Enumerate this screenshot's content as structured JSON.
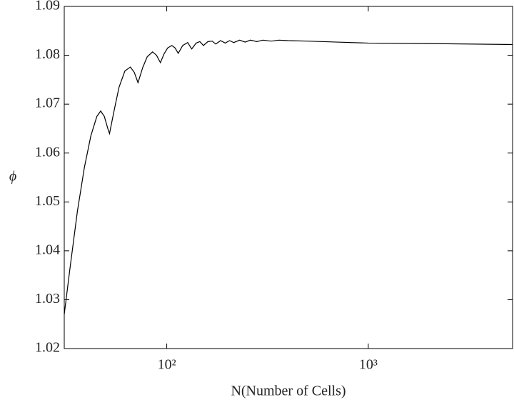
{
  "chart_data": {
    "type": "line",
    "xlabel": "N(Number of Cells)",
    "ylabel": "ϕ",
    "xscale": "log",
    "color": "#000000",
    "x": [
      31,
      33,
      36,
      39,
      42,
      45,
      47,
      49,
      51,
      52,
      55,
      58,
      62,
      66,
      69,
      72,
      76,
      80,
      85,
      89,
      93,
      97,
      101,
      106,
      110,
      114,
      120,
      127,
      133,
      140,
      146,
      152,
      160,
      168,
      175,
      185,
      195,
      205,
      215,
      230,
      245,
      260,
      280,
      300,
      330,
      360,
      400,
      500,
      700,
      1000,
      2000,
      5200
    ],
    "values": [
      1.027,
      1.036,
      1.048,
      1.057,
      1.0635,
      1.0675,
      1.0686,
      1.0675,
      1.065,
      1.064,
      1.069,
      1.0735,
      1.0768,
      1.0776,
      1.0765,
      1.0744,
      1.0775,
      1.0797,
      1.0807,
      1.08,
      1.0785,
      1.0803,
      1.0815,
      1.082,
      1.0815,
      1.0804,
      1.082,
      1.0826,
      1.0813,
      1.0825,
      1.0828,
      1.082,
      1.0828,
      1.0829,
      1.0823,
      1.083,
      1.0825,
      1.083,
      1.0826,
      1.0831,
      1.0827,
      1.0831,
      1.0828,
      1.0831,
      1.0829,
      1.0831,
      1.083,
      1.0829,
      1.0827,
      1.0825,
      1.0824,
      1.0822
    ],
    "xlim": [
      31,
      5200
    ],
    "ylim": [
      1.02,
      1.09
    ],
    "xticks": [
      {
        "value": 100,
        "label": "10²"
      },
      {
        "value": 1000,
        "label": "10³"
      }
    ],
    "yticks": [
      1.02,
      1.03,
      1.04,
      1.05,
      1.06,
      1.07,
      1.08,
      1.09
    ]
  }
}
